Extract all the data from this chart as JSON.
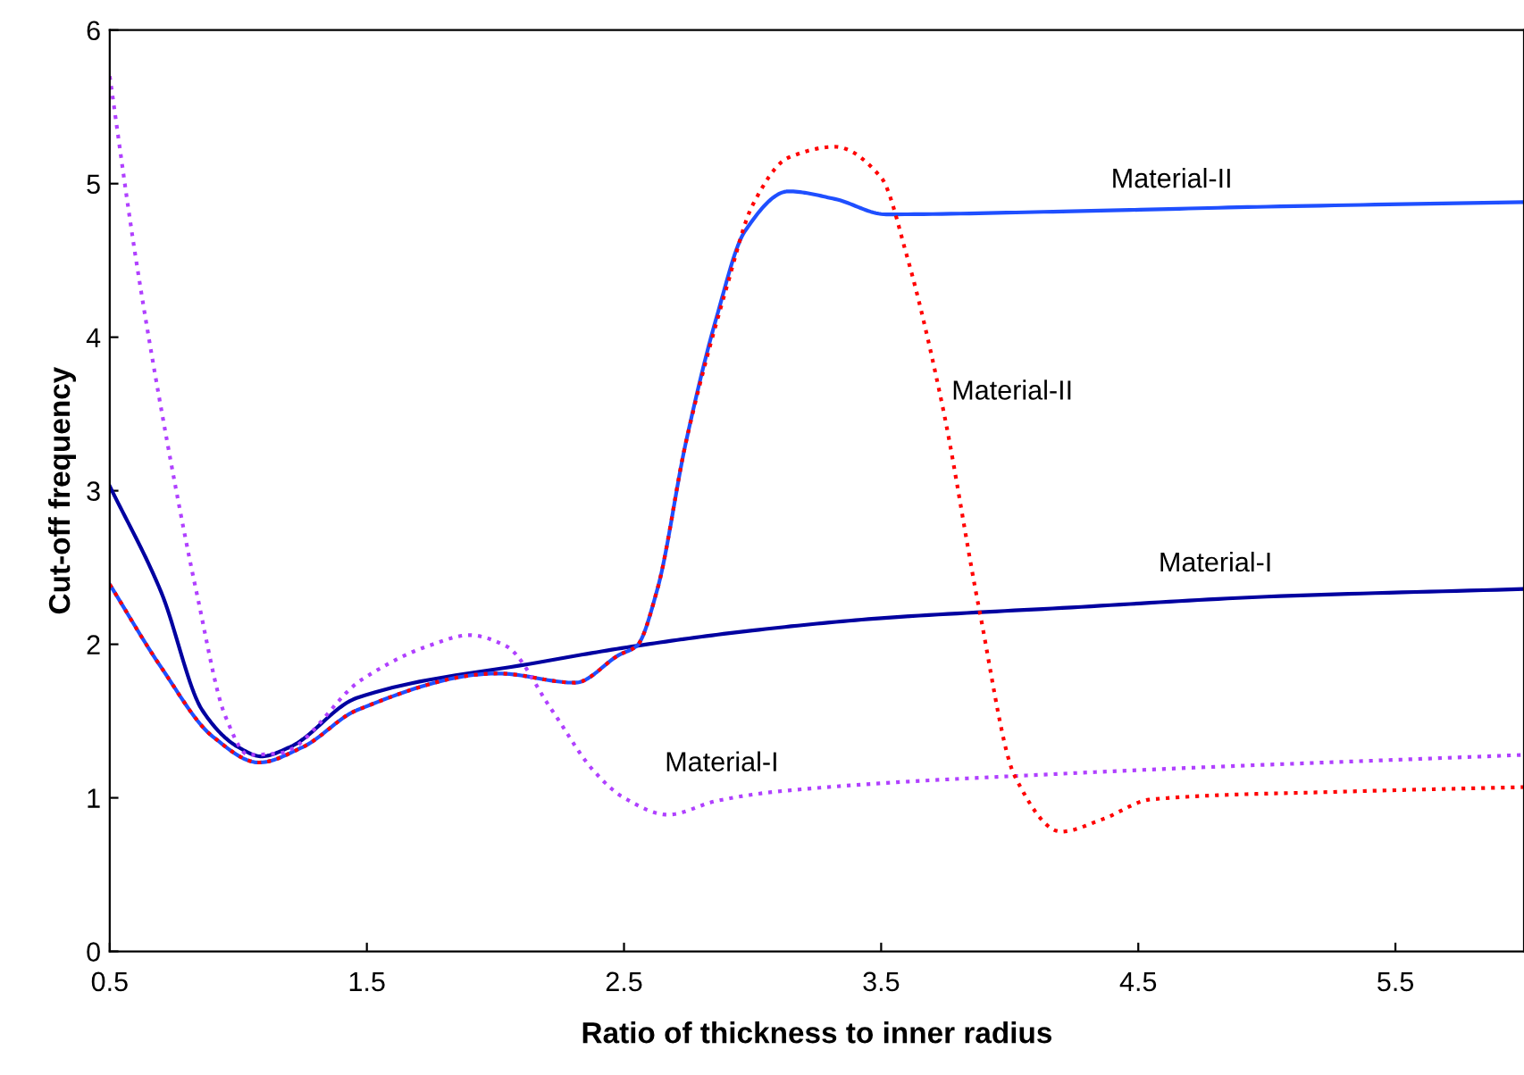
{
  "chart_data": {
    "type": "line",
    "xlabel": "Ratio of thickness to inner radius",
    "ylabel": "Cut-off frequency",
    "xlim": [
      0.5,
      6.0
    ],
    "xticks": [
      0.5,
      1.5,
      2.5,
      3.5,
      4.5,
      5.5
    ],
    "ylim": [
      0,
      6
    ],
    "yticks": [
      0,
      1,
      2,
      3,
      4,
      5,
      6
    ],
    "grid": false,
    "legend": false,
    "series": [
      {
        "name": "Material-I",
        "color": "#0000a0",
        "line_style": "solid",
        "x": [
          0.5,
          0.7,
          0.86,
          1.0,
          1.09,
          1.2,
          1.46,
          2.16,
          2.55,
          3.0,
          3.5,
          4.24,
          5.0,
          6.0
        ],
        "values": [
          3.03,
          2.34,
          1.57,
          1.33,
          1.27,
          1.33,
          1.65,
          1.88,
          1.99,
          2.09,
          2.17,
          2.24,
          2.31,
          2.36
        ]
      },
      {
        "name": "Material-II",
        "color": "#1f4fff",
        "line_style": "solid",
        "x": [
          0.5,
          0.7,
          0.9,
          1.08,
          1.25,
          1.46,
          2.01,
          2.31,
          2.48,
          2.55,
          2.63,
          2.74,
          2.86,
          2.97,
          3.14,
          3.32,
          3.52,
          4.24,
          5.0,
          6.0
        ],
        "values": [
          2.39,
          1.85,
          1.4,
          1.23,
          1.33,
          1.57,
          1.81,
          1.75,
          1.93,
          1.99,
          2.36,
          3.31,
          4.13,
          4.69,
          4.95,
          4.9,
          4.8,
          4.82,
          4.85,
          4.88
        ]
      },
      {
        "name": "Material-I",
        "color": "#b040ff",
        "line_style": "dotted",
        "x": [
          0.5,
          0.6,
          0.72,
          0.84,
          0.95,
          1.04,
          1.16,
          1.48,
          1.74,
          1.9,
          2.04,
          2.22,
          2.38,
          2.5,
          2.67,
          2.86,
          3.09,
          4.24,
          6.0
        ],
        "values": [
          5.7,
          4.53,
          3.35,
          2.32,
          1.53,
          1.28,
          1.29,
          1.77,
          1.99,
          2.06,
          1.99,
          1.57,
          1.18,
          1.0,
          0.89,
          0.98,
          1.04,
          1.16,
          1.28
        ]
      },
      {
        "name": "Material-II",
        "color": "#ff0000",
        "line_style": "dotted",
        "x": [
          0.5,
          0.7,
          0.9,
          1.08,
          1.25,
          1.46,
          2.01,
          2.31,
          2.48,
          2.55,
          2.63,
          2.74,
          2.9,
          3.0,
          3.14,
          3.32,
          3.5,
          3.6,
          3.74,
          3.88,
          4.02,
          4.2,
          4.36,
          4.55,
          5.29,
          6.0
        ],
        "values": [
          2.39,
          1.85,
          1.4,
          1.23,
          1.33,
          1.57,
          1.81,
          1.75,
          1.93,
          1.99,
          2.36,
          3.31,
          4.33,
          4.86,
          5.17,
          5.24,
          5.04,
          4.53,
          3.54,
          2.24,
          1.14,
          0.78,
          0.86,
          0.99,
          1.04,
          1.07
        ]
      }
    ]
  }
}
